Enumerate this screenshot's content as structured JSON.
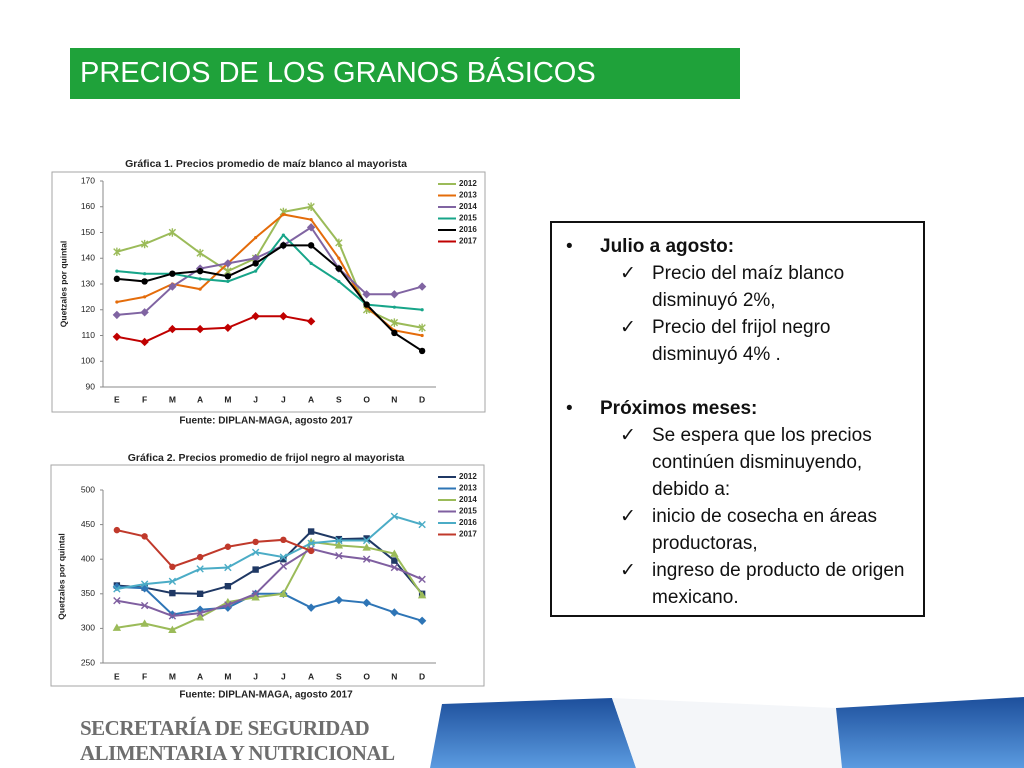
{
  "title": "PRECIOS DE LOS GRANOS BÁSICOS",
  "chart_data": [
    {
      "type": "line",
      "title": "Gráfica 1. Precios promedio de maíz blanco al mayorista",
      "y_label": "Quetzales por quintal",
      "source": "Fuente: DIPLAN-MAGA, agosto 2017",
      "categories": [
        "E",
        "F",
        "M",
        "A",
        "M",
        "J",
        "J",
        "A",
        "S",
        "O",
        "N",
        "D"
      ],
      "ylim": [
        90,
        170
      ],
      "yticks": [
        90,
        100,
        110,
        120,
        130,
        140,
        150,
        160,
        170
      ],
      "grid": false,
      "series": [
        {
          "name": "2012",
          "color": "#9bbb59",
          "marker": "star",
          "values": [
            142.5,
            145.5,
            150,
            142,
            135,
            140,
            158,
            160,
            146,
            120,
            115,
            113
          ]
        },
        {
          "name": "2013",
          "color": "#e46c0a",
          "marker": "none",
          "values": [
            123,
            125,
            130,
            128,
            138,
            148,
            157,
            155,
            140,
            121,
            112,
            110
          ]
        },
        {
          "name": "2014",
          "color": "#8064a2",
          "marker": "diamond",
          "values": [
            118,
            119,
            129,
            136,
            138,
            140,
            145,
            152,
            136,
            126,
            126,
            129
          ]
        },
        {
          "name": "2015",
          "color": "#17a589",
          "marker": "none",
          "values": [
            135,
            134,
            134,
            132,
            131,
            135,
            149,
            138,
            131,
            122,
            121,
            120
          ]
        },
        {
          "name": "2016",
          "color": "#000000",
          "marker": "circle",
          "values": [
            132,
            131,
            134,
            135,
            133,
            138,
            145,
            145,
            136,
            122,
            111,
            104
          ]
        },
        {
          "name": "2017",
          "color": "#c00000",
          "marker": "diamond",
          "values": [
            109.5,
            107.5,
            112.5,
            112.5,
            113,
            117.5,
            117.5,
            115.5,
            null,
            null,
            null,
            null
          ]
        }
      ]
    },
    {
      "type": "line",
      "title": "Gráfica 2. Precios promedio de frijol negro al mayorista",
      "y_label": "Quetzales por quintal",
      "source": "Fuente: DIPLAN-MAGA, agosto 2017",
      "categories": [
        "E",
        "F",
        "M",
        "A",
        "M",
        "J",
        "J",
        "A",
        "S",
        "O",
        "N",
        "D"
      ],
      "ylim": [
        250,
        500
      ],
      "yticks": [
        250,
        300,
        350,
        400,
        450,
        500
      ],
      "grid": false,
      "series": [
        {
          "name": "2012",
          "color": "#1f3864",
          "marker": "square",
          "values": [
            362,
            359,
            351,
            350,
            361,
            385,
            400,
            440,
            429,
            430,
            398,
            350
          ]
        },
        {
          "name": "2013",
          "color": "#2e75b6",
          "marker": "diamond",
          "values": [
            360,
            358,
            320,
            327,
            330,
            350,
            350,
            330,
            341,
            337,
            323,
            311
          ]
        },
        {
          "name": "2014",
          "color": "#9bbb59",
          "marker": "triangle",
          "values": [
            301,
            307,
            298,
            316,
            338,
            345,
            350,
            425,
            420,
            417,
            408,
            348
          ]
        },
        {
          "name": "2015",
          "color": "#7f5fa0",
          "marker": "x",
          "values": [
            340,
            333,
            318,
            322,
            334,
            350,
            390,
            415,
            405,
            400,
            388,
            371
          ]
        },
        {
          "name": "2016",
          "color": "#4bacc6",
          "marker": "x",
          "values": [
            357,
            364,
            368,
            386,
            388,
            410,
            403,
            423,
            427,
            427,
            462,
            450
          ]
        },
        {
          "name": "2017",
          "color": "#c0392b",
          "marker": "circle",
          "values": [
            442,
            433,
            389,
            403,
            418,
            425,
            428,
            412,
            null,
            null,
            null,
            null
          ]
        }
      ]
    }
  ],
  "bullets": [
    {
      "heading": "Julio a agosto:",
      "items": [
        "Precio del maíz blanco disminuyó 2%,",
        "Precio del frijol negro disminuyó 4% ."
      ]
    },
    {
      "heading": "Próximos meses:",
      "items": [
        "Se espera que los precios continúen disminuyendo, debido a:",
        "inicio de cosecha en áreas productoras,",
        "ingreso de producto de origen mexicano."
      ]
    }
  ],
  "footer": [
    "SECRETARÍA DE SEGURIDAD",
    "ALIMENTARIA Y NUTRICIONAL"
  ]
}
